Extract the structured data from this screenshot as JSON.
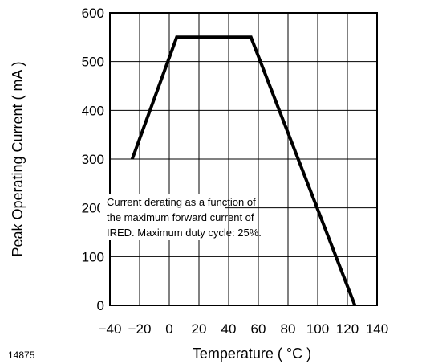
{
  "chart_data": {
    "type": "line",
    "xlabel": "Temperature ( °C )",
    "ylabel": "Peak Operating Current ( mA )",
    "xlim": [
      -40,
      140
    ],
    "ylim": [
      0,
      600
    ],
    "xticks": [
      -40,
      -20,
      0,
      20,
      40,
      60,
      80,
      100,
      120,
      140
    ],
    "yticks": [
      0,
      100,
      200,
      300,
      400,
      500,
      600
    ],
    "x_tick_labels": [
      "−40",
      "−20",
      "0",
      "20",
      "40",
      "60",
      "80",
      "100",
      "120",
      "140"
    ],
    "y_tick_labels": [
      "0",
      "100",
      "200",
      "300",
      "400",
      "500",
      "600"
    ],
    "grid": true,
    "series": [
      {
        "x": [
          -25,
          5,
          55,
          125
        ],
        "y": [
          300,
          550,
          550,
          0
        ]
      }
    ],
    "annotation": [
      "Current derating as a function of",
      "the maximum forward current of",
      "IRED. Maximum duty cycle: 25%."
    ],
    "figure_id": "14875"
  }
}
